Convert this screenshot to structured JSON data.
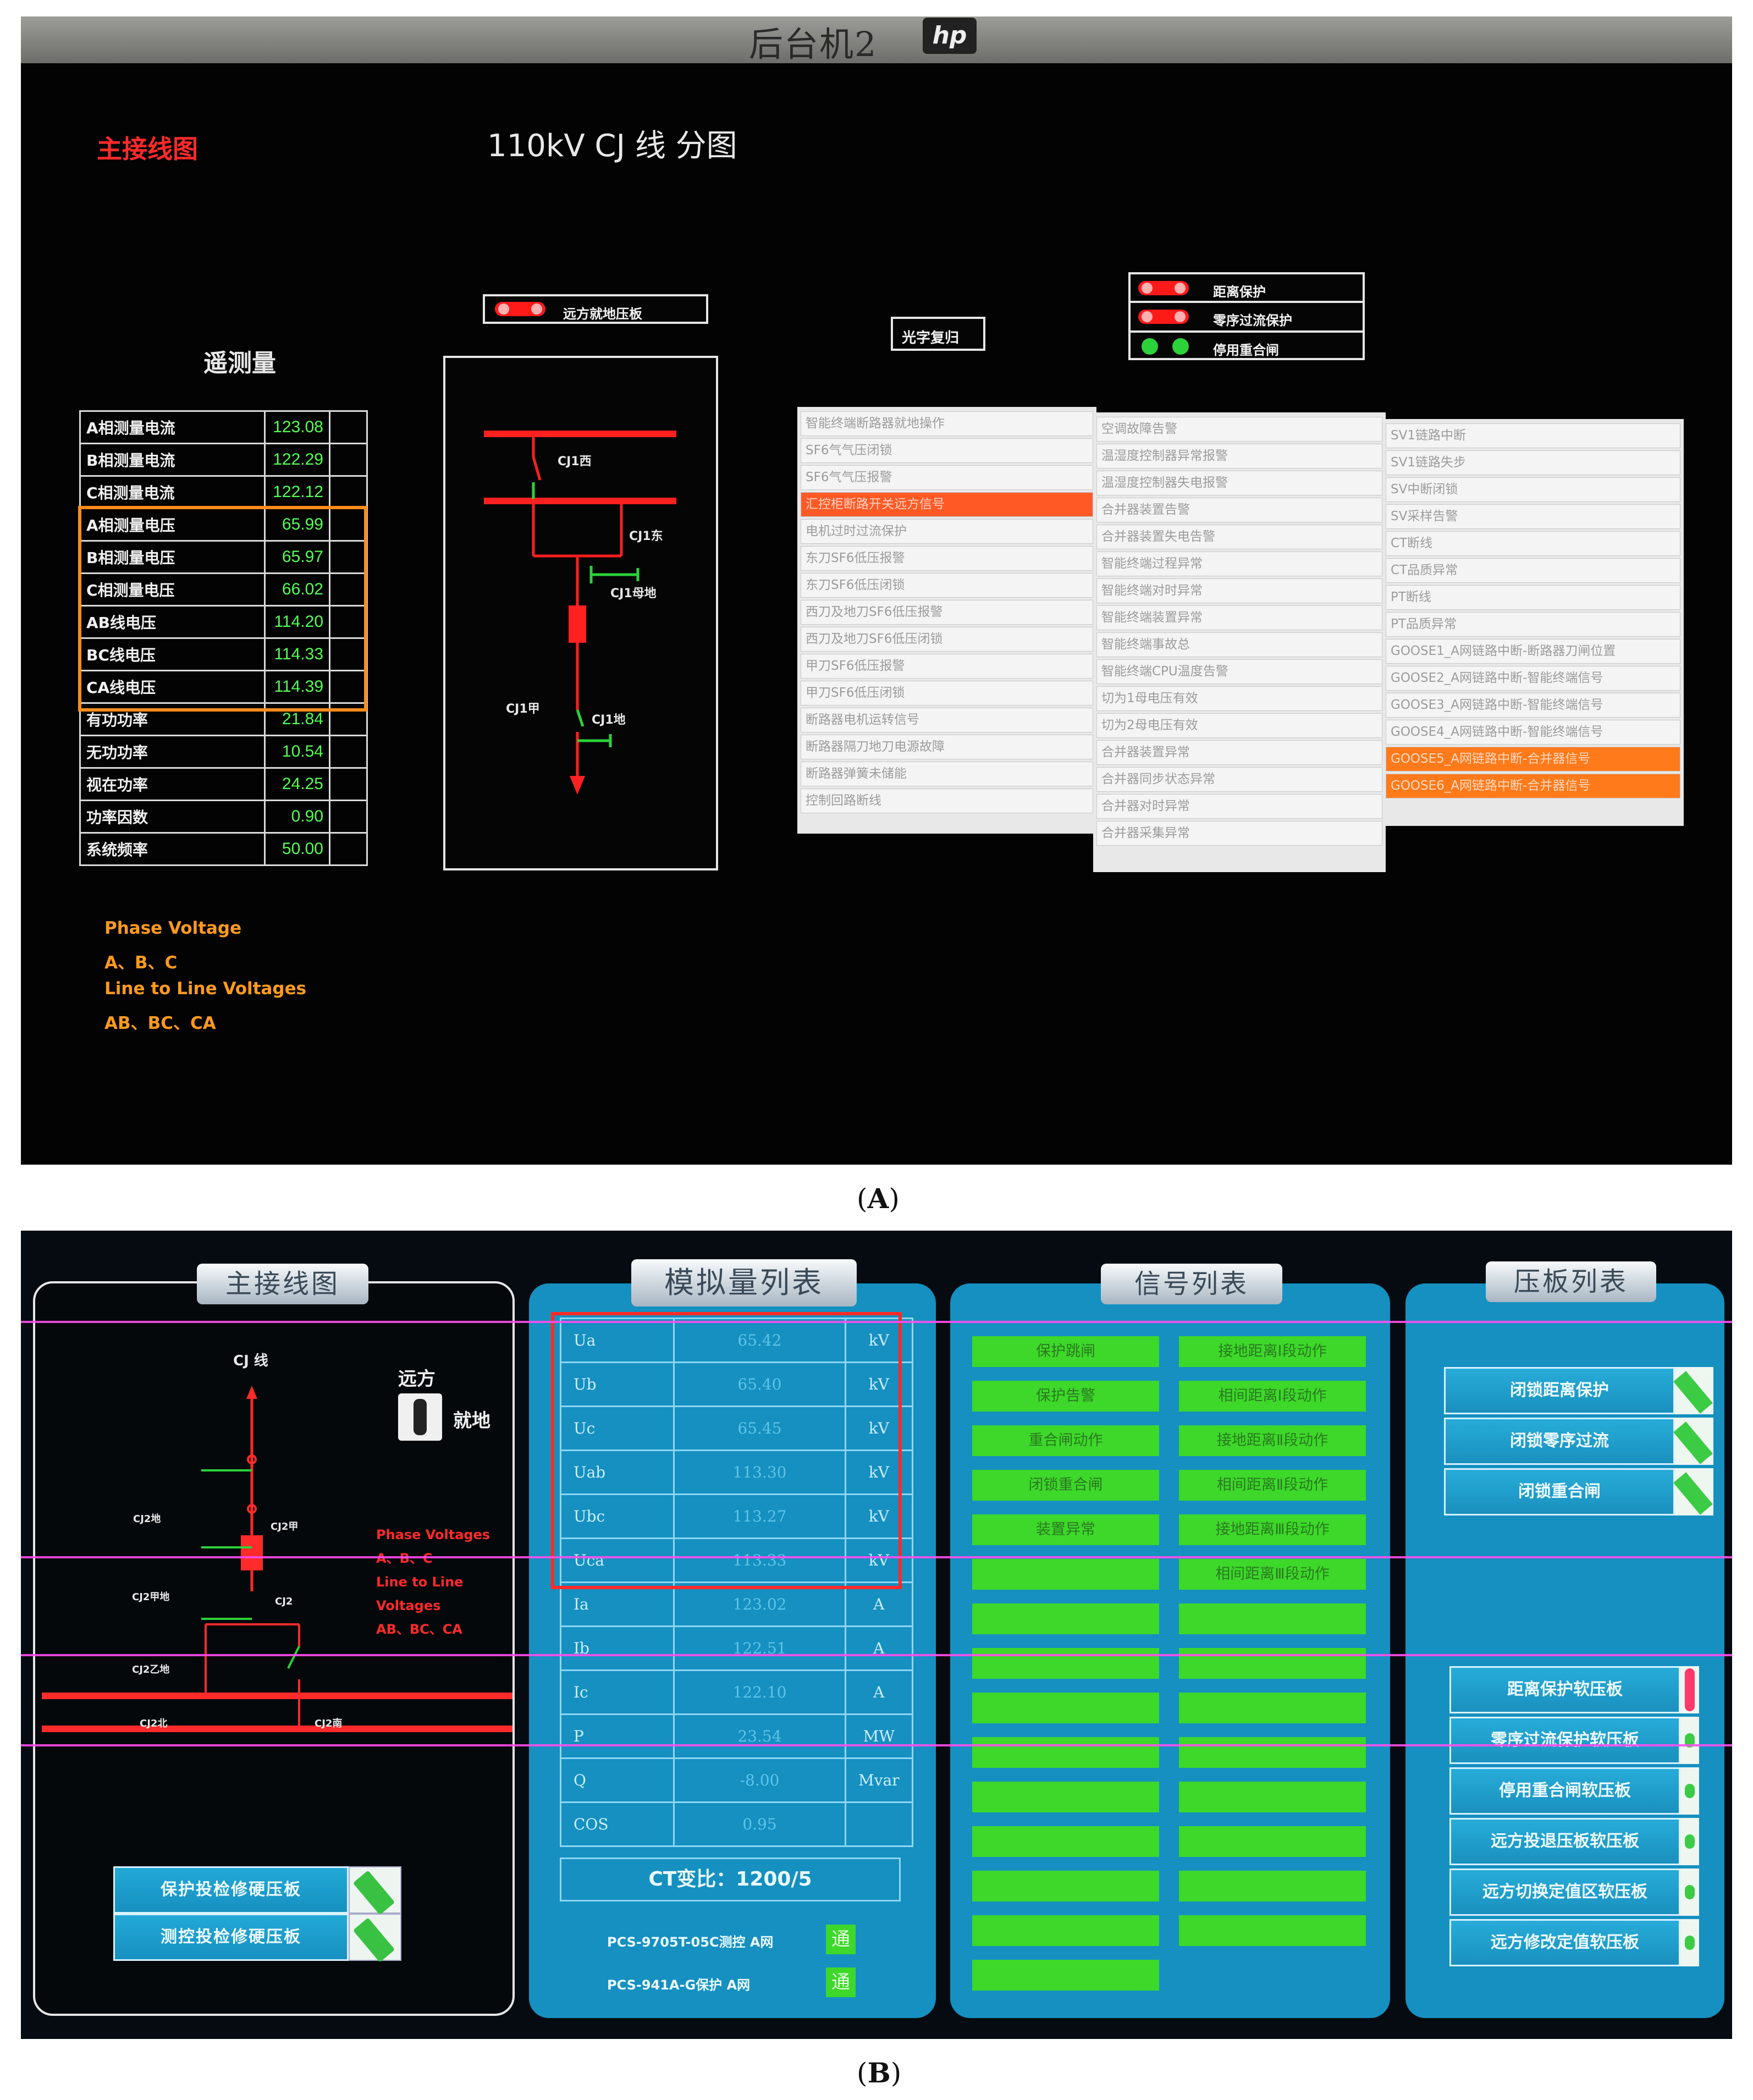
{
  "panel_a": {
    "monitor_label": "后台机2",
    "hp_logo": "hp",
    "main_wiring_label": "主接线图",
    "title": "110kV CJ 线 分图",
    "telemetry_title": "遥测量",
    "telemetry_rows": [
      {
        "label": "A相测量电流",
        "value": "123.08"
      },
      {
        "label": "B相测量电流",
        "value": "122.29"
      },
      {
        "label": "C相测量电流",
        "value": "122.12"
      },
      {
        "label": "A相测量电压",
        "value": "65.99"
      },
      {
        "label": "B相测量电压",
        "value": "65.97"
      },
      {
        "label": "C相测量电压",
        "value": "66.02"
      },
      {
        "label": "AB线电压",
        "value": "114.20"
      },
      {
        "label": "BC线电压",
        "value": "114.33"
      },
      {
        "label": "CA线电压",
        "value": "114.39"
      },
      {
        "label": "有功功率",
        "value": "21.84"
      },
      {
        "label": "无功功率",
        "value": "10.54"
      },
      {
        "label": "视在功率",
        "value": "24.25"
      },
      {
        "label": "功率因数",
        "value": "0.90"
      },
      {
        "label": "系统频率",
        "value": "50.00"
      }
    ],
    "annotation": [
      "Phase Voltage",
      "A、B、C",
      "Line to Line Voltages",
      "AB、BC、CA"
    ],
    "remote_plate": "远方就地压板",
    "diagram_labels": {
      "west": "CJ1西",
      "east": "CJ1东",
      "bus_ground": "CJ1母地",
      "a": "CJ1甲",
      "ground": "CJ1地"
    },
    "reset_button": "光字复归",
    "protections": [
      {
        "label": "距离保护",
        "state": "red"
      },
      {
        "label": "零序过流保护",
        "state": "red"
      },
      {
        "label": "停用重合闸",
        "state": "green"
      }
    ],
    "signals_col1": [
      {
        "text": "智能终端断路器就地操作",
        "alarm": false
      },
      {
        "text": "SF6气气压闭锁",
        "alarm": false
      },
      {
        "text": "SF6气气压报警",
        "alarm": false
      },
      {
        "text": "汇控柜断路开关远方信号",
        "alarm": true
      },
      {
        "text": "电机过时过流保护",
        "alarm": false
      },
      {
        "text": "东刀SF6低压报警",
        "alarm": false
      },
      {
        "text": "东刀SF6低压闭锁",
        "alarm": false
      },
      {
        "text": "西刀及地刀SF6低压报警",
        "alarm": false
      },
      {
        "text": "西刀及地刀SF6低压闭锁",
        "alarm": false
      },
      {
        "text": "甲刀SF6低压报警",
        "alarm": false
      },
      {
        "text": "甲刀SF6低压闭锁",
        "alarm": false
      },
      {
        "text": "断路器电机运转信号",
        "alarm": false
      },
      {
        "text": "断路器隔刀地刀电源故障",
        "alarm": false
      },
      {
        "text": "断路器弹簧未储能",
        "alarm": false
      },
      {
        "text": "控制回路断线",
        "alarm": false
      }
    ],
    "signals_col2": [
      "空调故障告警",
      "温湿度控制器异常报警",
      "温湿度控制器失电报警",
      "合并器装置告警",
      "合并器装置失电告警",
      "智能终端过程异常",
      "智能终端对时异常",
      "智能终端装置异常",
      "智能终端事故总",
      "智能终端CPU温度告警",
      "切为1母电压有效",
      "切为2母电压有效",
      "合并器装置异常",
      "合并器同步状态异常",
      "合并器对时异常",
      "合并器采集异常"
    ],
    "signals_col3": [
      {
        "text": "SV1链路中断",
        "alarm": false
      },
      {
        "text": "SV1链路失步",
        "alarm": false
      },
      {
        "text": "SV中断闭锁",
        "alarm": false
      },
      {
        "text": "SV采样告警",
        "alarm": false
      },
      {
        "text": "CT断线",
        "alarm": false
      },
      {
        "text": "CT品质异常",
        "alarm": false
      },
      {
        "text": "PT断线",
        "alarm": false
      },
      {
        "text": "PT品质异常",
        "alarm": false
      },
      {
        "text": "GOOSE1_A网链路中断-断路器刀闸位置",
        "alarm": false
      },
      {
        "text": "GOOSE2_A网链路中断-智能终端信号",
        "alarm": false
      },
      {
        "text": "GOOSE3_A网链路中断-智能终端信号",
        "alarm": false
      },
      {
        "text": "GOOSE4_A网链路中断-智能终端信号",
        "alarm": false
      },
      {
        "text": "GOOSE5_A网链路中断-合并器信号",
        "alarm": true
      },
      {
        "text": "GOOSE6_A网链路中断-合并器信号",
        "alarm": true
      }
    ]
  },
  "panel_b": {
    "titles": {
      "wiring": "主接线图",
      "analog": "模拟量列表",
      "signals": "信号列表",
      "plates": "压板列表"
    },
    "line_label": "CJ 线",
    "remote": "远方",
    "local": "就地",
    "diagram_labels": {
      "bus_ground": "CJ2地",
      "a": "CJ2甲",
      "a_ground": "CJ2甲地",
      "breaker": "CJ2",
      "b_ground": "CJ2乙地",
      "north": "CJ2北",
      "south": "CJ2南"
    },
    "annotation": [
      "Phase Voltages",
      "A、B、C",
      "Line to Line Voltages",
      "AB、BC、CA"
    ],
    "hard_plates": [
      "保护投检修硬压板",
      "测控投检修硬压板"
    ],
    "analog_rows": [
      {
        "name": "Ua",
        "value": "65.42",
        "unit": "kV"
      },
      {
        "name": "Ub",
        "value": "65.40",
        "unit": "kV"
      },
      {
        "name": "Uc",
        "value": "65.45",
        "unit": "kV"
      },
      {
        "name": "Uab",
        "value": "113.30",
        "unit": "kV"
      },
      {
        "name": "Ubc",
        "value": "113.27",
        "unit": "kV"
      },
      {
        "name": "Uca",
        "value": "113.33",
        "unit": "kV"
      },
      {
        "name": "Ia",
        "value": "123.02",
        "unit": "A"
      },
      {
        "name": "Ib",
        "value": "122.51",
        "unit": "A"
      },
      {
        "name": "Ic",
        "value": "122.10",
        "unit": "A"
      },
      {
        "name": "P",
        "value": "23.54",
        "unit": "MW"
      },
      {
        "name": "Q",
        "value": "-8.00",
        "unit": "Mvar"
      },
      {
        "name": "COS",
        "value": "0.95",
        "unit": ""
      }
    ],
    "ct_ratio": "CT变比：1200/5",
    "comm": [
      {
        "label": "PCS-9705T-05C测控 A网",
        "status": "通"
      },
      {
        "label": "PCS-941A-G保护 A网",
        "status": "通"
      }
    ],
    "signals_left": [
      "保护跳闸",
      "保护告警",
      "重合闸动作",
      "闭锁重合闸",
      "装置异常",
      "",
      "",
      "",
      "",
      "",
      "",
      "",
      "",
      "",
      ""
    ],
    "signals_right": [
      "接地距离Ⅰ段动作",
      "相间距离Ⅰ段动作",
      "接地距离Ⅱ段动作",
      "相间距离Ⅱ段动作",
      "接地距离Ⅲ段动作",
      "相间距离Ⅲ段动作",
      "",
      "",
      "",
      "",
      "",
      "",
      "",
      ""
    ],
    "plate_locks": [
      "闭锁距离保护",
      "闭锁零序过流",
      "闭锁重合闸"
    ],
    "soft_plates": [
      "距离保护软压板",
      "零序过流保护软压板",
      "停用重合闸软压板",
      "远方投退压板软压板",
      "远方切换定值区软压板",
      "远方修改定值软压板"
    ]
  },
  "captions": {
    "a": "A",
    "b": "B"
  },
  "colors": {
    "alarm_red": "#ff2a2a",
    "annotation_orange": "#ff9a1f",
    "value_green": "#54ff54",
    "panel_cyan": "#1590c0",
    "signal_green": "#3dd82a"
  }
}
